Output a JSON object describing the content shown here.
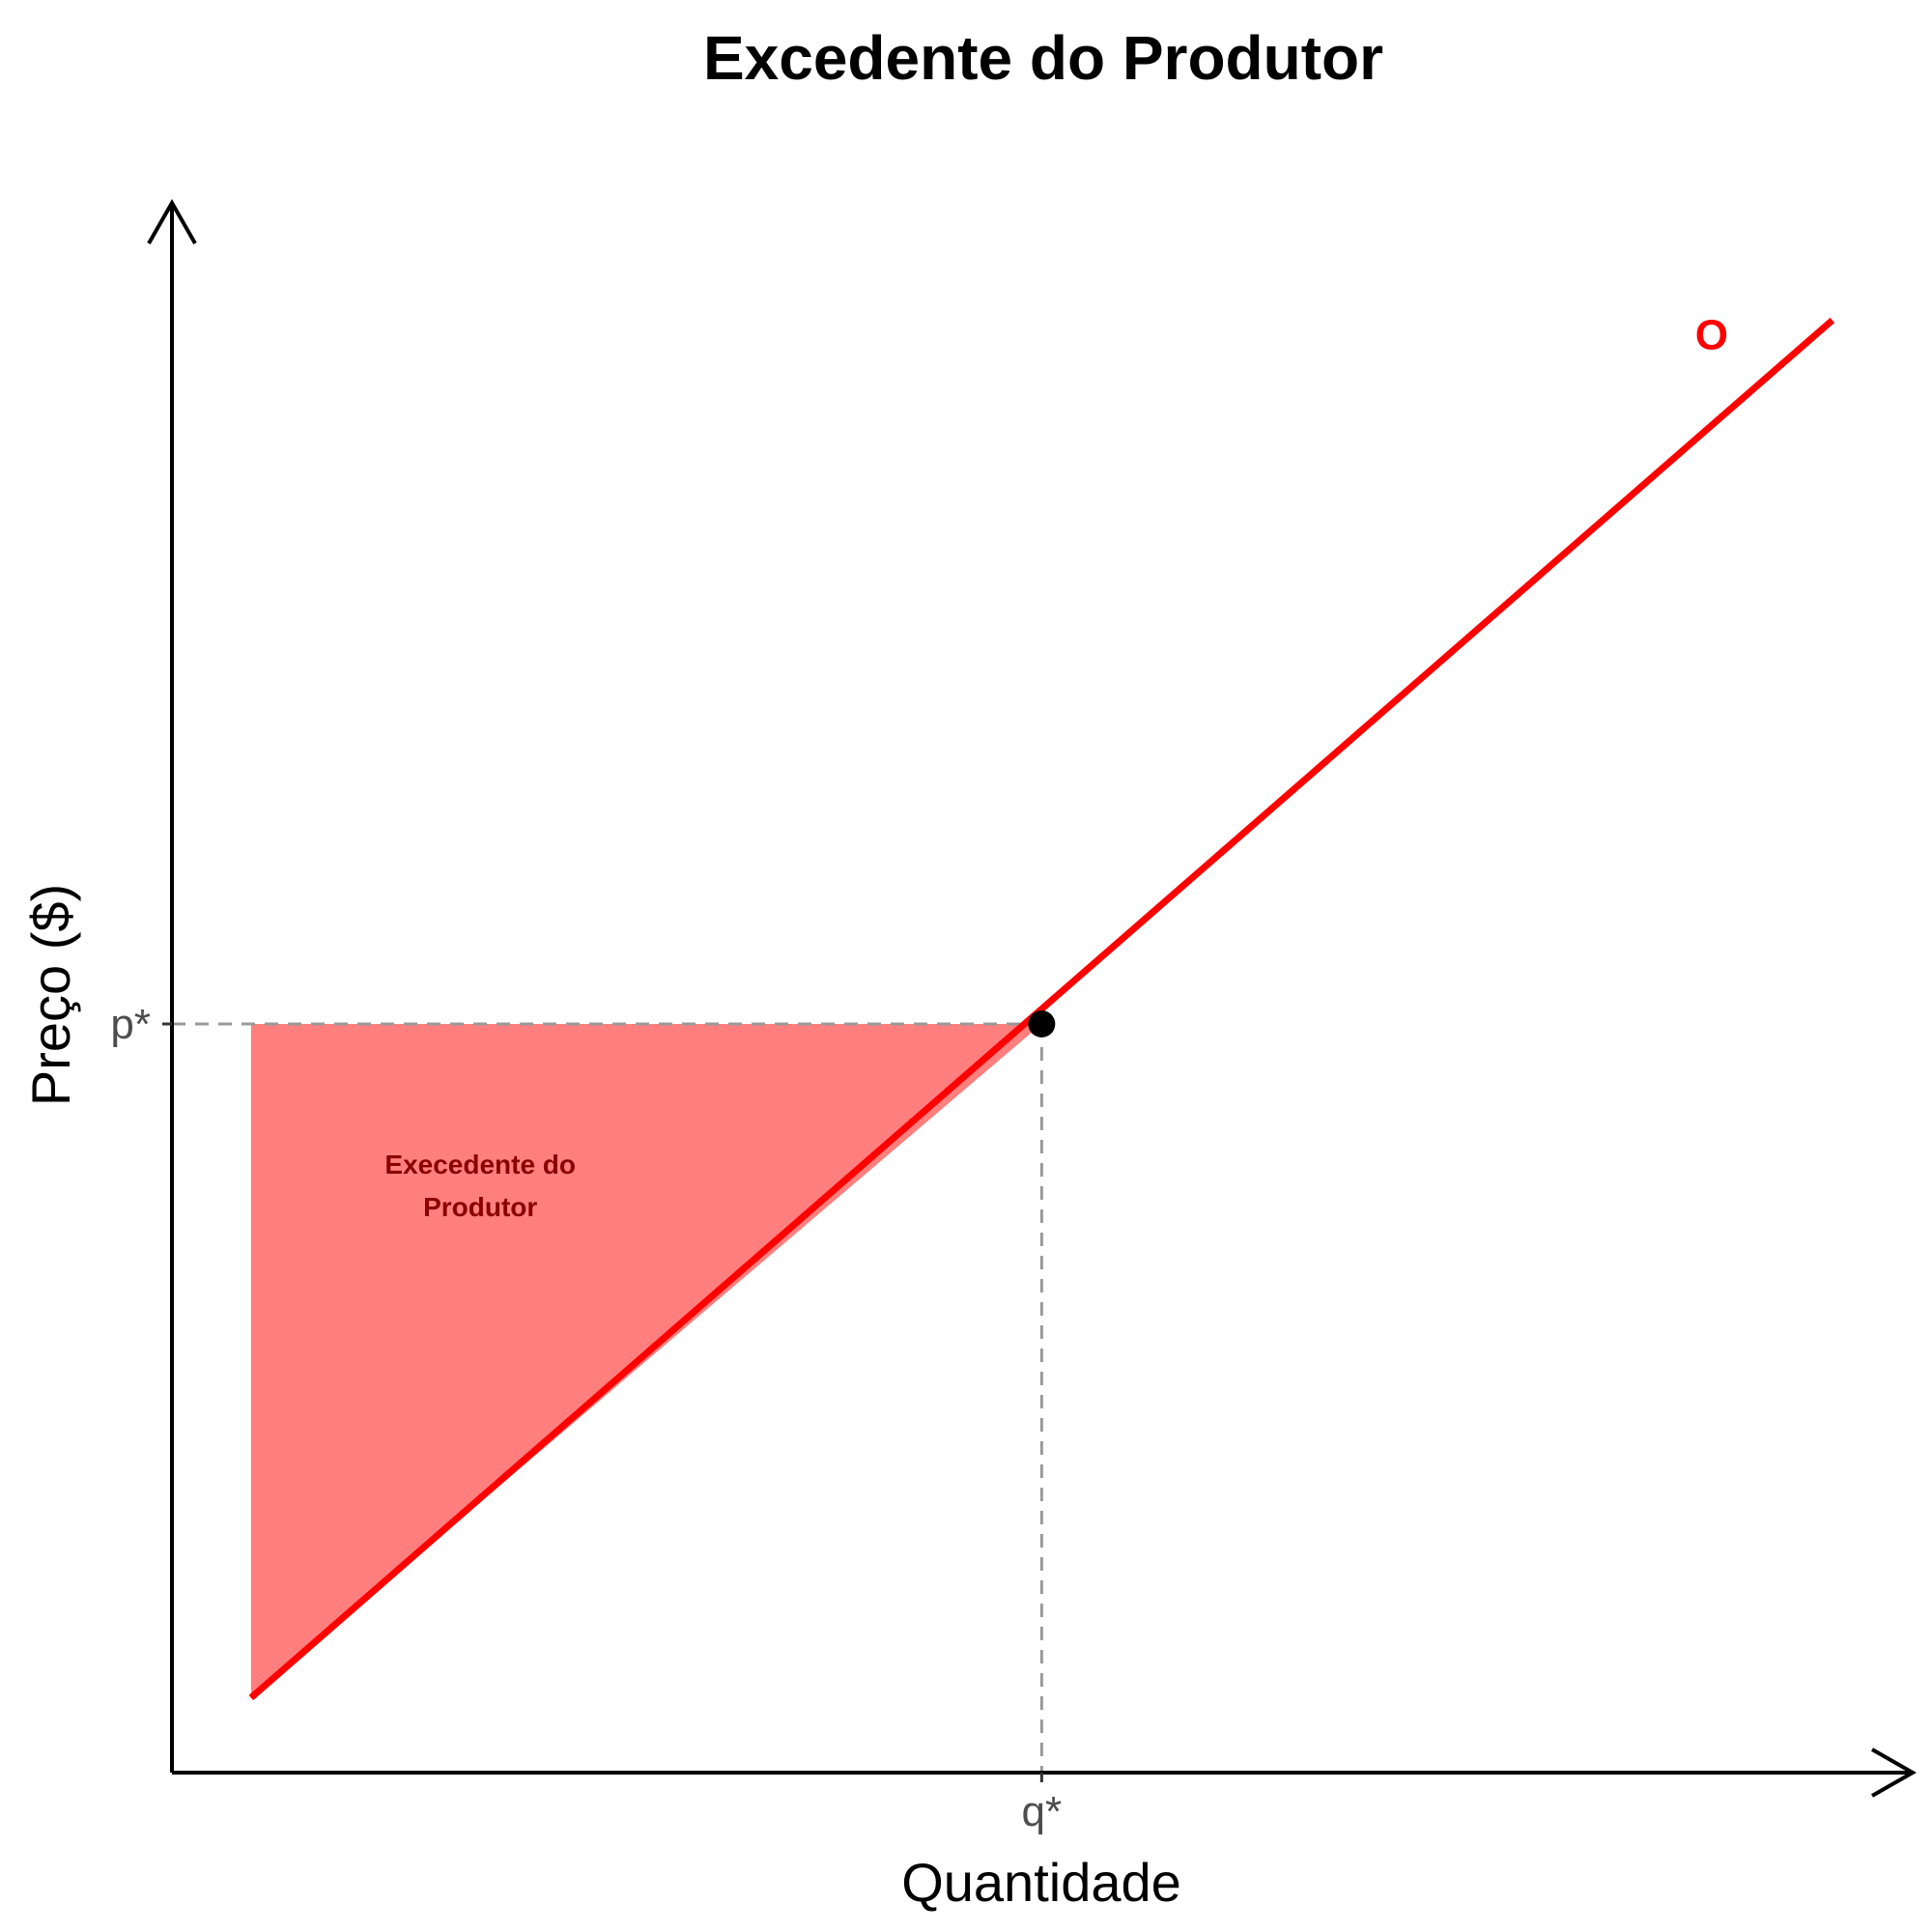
{
  "chart_data": {
    "type": "area",
    "title": "Excedente do Produtor",
    "xlabel": "Quantidade",
    "ylabel": "Preço ($)",
    "xlim": [
      0,
      10
    ],
    "ylim": [
      0,
      10
    ],
    "grid": false,
    "series": [
      {
        "name": "O",
        "x": [
          0.5,
          10.5
        ],
        "y": [
          0.5,
          9.7
        ],
        "color": "#ff0000"
      }
    ],
    "equilibrium": {
      "q": 5.5,
      "p": 5.0
    },
    "x_ticks": [
      {
        "value": 5.5,
        "label": "q*"
      }
    ],
    "y_ticks": [
      {
        "value": 5.0,
        "label": "p*"
      }
    ],
    "shaded_area": {
      "polygon": [
        [
          0.5,
          0.5
        ],
        [
          0.5,
          5.0
        ],
        [
          5.5,
          5.0
        ]
      ],
      "color": "#ff0000",
      "opacity": 0.5
    },
    "annotations": [
      {
        "text": "Execedente do Produtor",
        "lines": [
          "Execedente do",
          "Produtor"
        ],
        "x": 1.95,
        "y": 4.0,
        "color": "#8b0000"
      }
    ],
    "guide_lines": {
      "style": "dashed",
      "color": "#999999"
    }
  }
}
